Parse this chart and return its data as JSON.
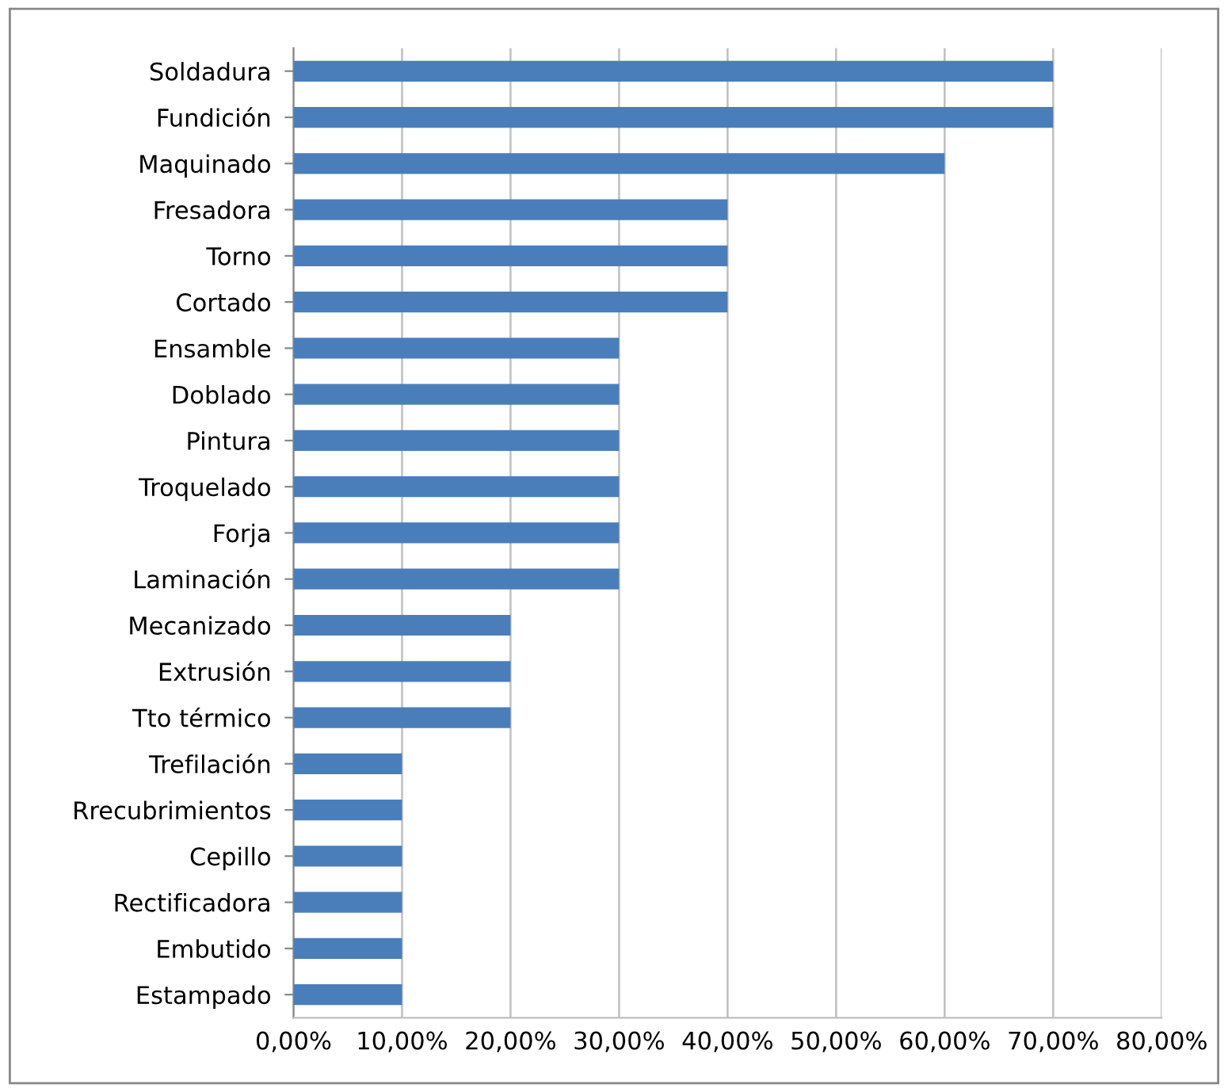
{
  "chart_data": {
    "type": "bar",
    "orientation": "horizontal",
    "categories": [
      "Soldadura",
      "Fundición",
      "Maquinado",
      "Fresadora",
      "Torno",
      "Cortado",
      "Ensamble",
      "Doblado",
      "Pintura",
      "Troquelado",
      "Forja",
      "Laminación",
      "Mecanizado",
      "Extrusión",
      "Tto térmico",
      "Trefilación",
      "Rrecubrimientos",
      "Cepillo",
      "Rectificadora",
      "Embutido",
      "Estampado"
    ],
    "values": [
      70,
      70,
      60,
      40,
      40,
      40,
      30,
      30,
      30,
      30,
      30,
      30,
      20,
      20,
      20,
      10,
      10,
      10,
      10,
      10,
      10
    ],
    "color": "#4a7ebb",
    "xlim": [
      0,
      80
    ],
    "xticks": [
      {
        "value": 0,
        "label": "0,00%"
      },
      {
        "value": 10,
        "label": "10,00%"
      },
      {
        "value": 20,
        "label": "20,00%"
      },
      {
        "value": 30,
        "label": "30,00%"
      },
      {
        "value": 40,
        "label": "40,00%"
      },
      {
        "value": 50,
        "label": "50,00%"
      },
      {
        "value": 60,
        "label": "60,00%"
      },
      {
        "value": 70,
        "label": "70,00%"
      },
      {
        "value": 80,
        "label": "80,00%"
      }
    ],
    "grid": "x"
  }
}
